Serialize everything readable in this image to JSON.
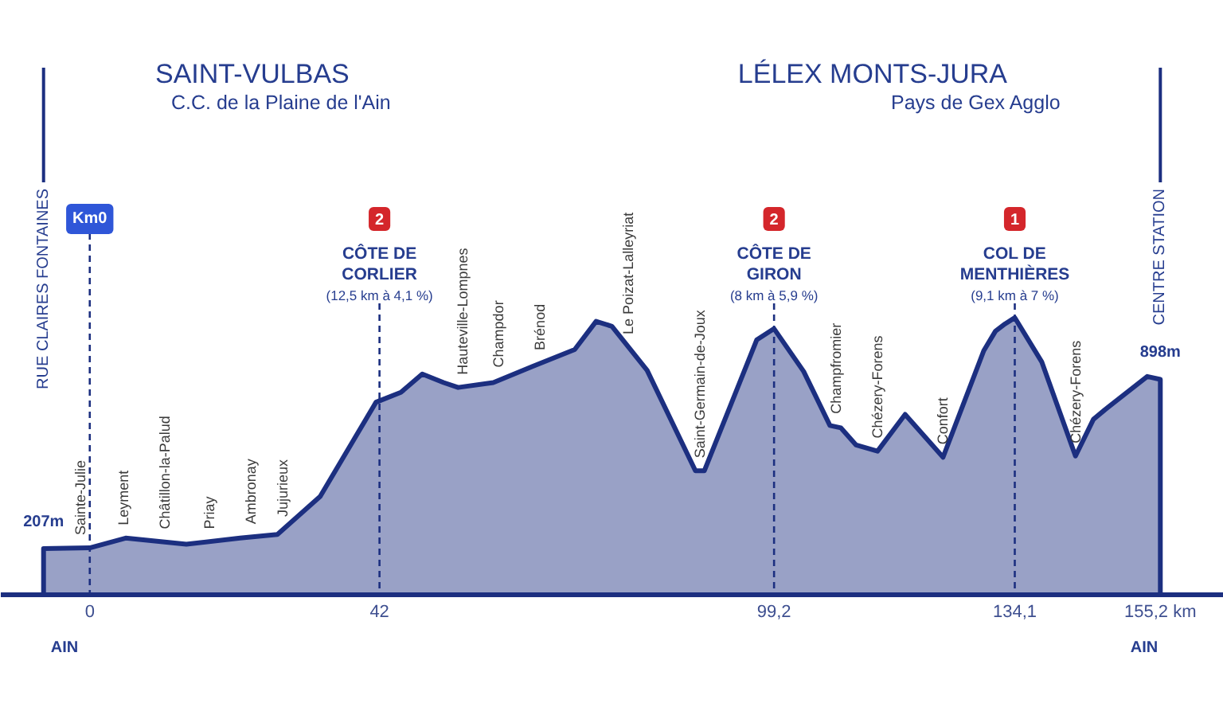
{
  "chart_data": {
    "type": "area",
    "title": "SAINT-VULBAS",
    "subtitle": "C.C. de la Plaine de l'Ain",
    "x": [
      -6.7,
      0,
      5.2,
      14.0,
      21.8,
      27.2,
      33.4,
      41.5,
      45.1,
      48.2,
      51.3,
      53.4,
      58.5,
      64.1,
      70.3,
      73.4,
      75.7,
      80.8,
      87.8,
      89.1,
      96.7,
      99.2,
      103.5,
      107.3,
      108.9,
      111.1,
      114.2,
      118.2,
      123.7,
      129.6,
      131.3,
      132.7,
      134.1,
      138.0,
      142.9,
      145.5,
      147.2,
      153.3,
      155.2
    ],
    "values": [
      207,
      210,
      250,
      225,
      250,
      265,
      420,
      805,
      845,
      920,
      885,
      865,
      885,
      950,
      1020,
      1135,
      1115,
      935,
      525,
      525,
      1060,
      1105,
      930,
      710,
      700,
      630,
      605,
      755,
      580,
      1015,
      1095,
      1125,
      1150,
      970,
      585,
      735,
      775,
      910,
      898
    ],
    "value_labels": [
      "207m",
      null,
      null,
      null,
      null,
      null,
      null,
      null,
      null,
      null,
      null,
      null,
      null,
      null,
      null,
      null,
      null,
      null,
      null,
      null,
      null,
      null,
      null,
      null,
      null,
      null,
      null,
      null,
      null,
      null,
      null,
      null,
      null,
      null,
      null,
      null,
      null,
      null,
      "898m"
    ],
    "color": "#1c2f80",
    "xlim": [
      -12.9,
      164.4
    ],
    "xticks": [
      0,
      42,
      {
        "value": 99.2,
        "label": "99,2"
      },
      {
        "value": 134.1,
        "label": "134,1"
      },
      {
        "value": 155.2,
        "label": "155,2 km"
      }
    ],
    "tick_labels": "x",
    "ref_lines": [
      {
        "axis": "x",
        "value": -6.7,
        "label": "RUE CLAIRES FONTAINES",
        "line_style": "solid"
      },
      {
        "axis": "x",
        "value": 0,
        "label": "Km0",
        "line_style": "dashed"
      },
      {
        "axis": "x",
        "value": 42,
        "label": "2\nCÔTE DE\nCORLIER\n(12,5 km à 4,1 %)",
        "line_style": "dashed"
      },
      {
        "axis": "x",
        "value": 99.2,
        "label": "2\nCÔTE DE\nGIRON\n(8 km à 5,9 %)",
        "line_style": "dashed"
      },
      {
        "axis": "x",
        "value": 134.1,
        "label": "1\nCOL DE\nMENTHIÈRES\n(9,1 km à 7 %)",
        "line_style": "dashed"
      },
      {
        "axis": "x",
        "value": 155.2,
        "label": "CENTRE STATION",
        "line_style": "solid"
      }
    ],
    "annotations": [
      "LÉLEX MONTS-JURA",
      "Pays de Gex Agglo",
      "AIN",
      "AIN",
      {
        "text": "Sainte-Julie",
        "x": -1.3,
        "y": 210
      },
      {
        "text": "Leyment",
        "x": 4.9,
        "y": 250
      },
      {
        "text": "Châtillon-la-Palud",
        "x": 10.9,
        "y": 235
      },
      {
        "text": "Priay",
        "x": 17.4,
        "y": 235
      },
      {
        "text": "Ambronay",
        "x": 23.3,
        "y": 255
      },
      {
        "text": "Jujurieux",
        "x": 28.0,
        "y": 285
      },
      {
        "text": "Hauteville-Lompnes",
        "x": 54.0,
        "y": 865
      },
      {
        "text": "Champdor",
        "x": 59.3,
        "y": 895
      },
      {
        "text": "Brénod",
        "x": 65.3,
        "y": 965
      },
      {
        "text": "Le Poizat-Lalleyriat",
        "x": 78.1,
        "y": 1030
      },
      {
        "text": "Saint-Germain-de-Joux",
        "x": 88.5,
        "y": 525
      },
      {
        "text": "Champfromier",
        "x": 108.2,
        "y": 705
      },
      {
        "text": "Chézery-Forens",
        "x": 114.2,
        "y": 605
      },
      {
        "text": "Confort",
        "x": 123.7,
        "y": 580
      },
      {
        "text": "Chézery-Forens",
        "x": 142.9,
        "y": 585
      }
    ]
  }
}
